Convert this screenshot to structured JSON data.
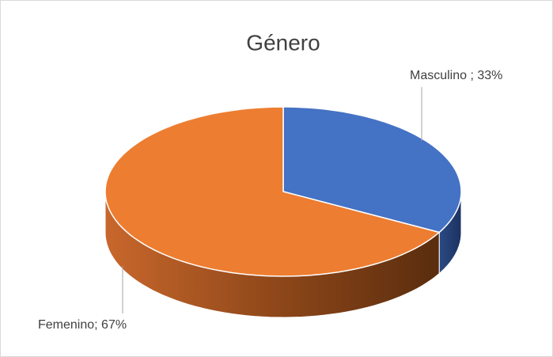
{
  "chart_data": {
    "type": "pie",
    "title": "Género",
    "categories": [
      "Masculino",
      "Femenino"
    ],
    "values": [
      33,
      67
    ],
    "value_labels": [
      "Masculino ; 33%",
      "Femenino; 67%"
    ],
    "colors": [
      "#4472c4",
      "#ed7d31"
    ]
  }
}
